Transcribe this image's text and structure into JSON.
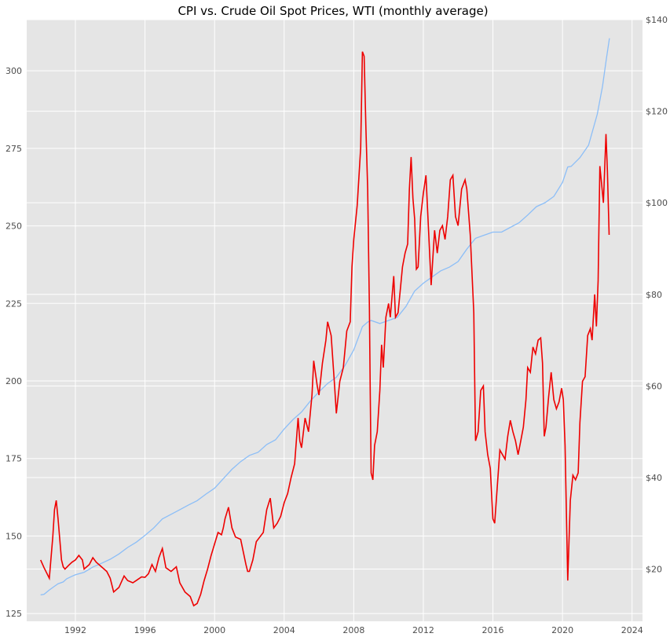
{
  "chart_data": {
    "type": "line",
    "title": "CPI vs. Crude Oil Spot Prices, WTI (monthly average)",
    "xlabel": "",
    "ylabel_left": "",
    "ylabel_right": "",
    "grid": true,
    "legend": "none",
    "colors": {
      "background": "#e5e5e5",
      "grid": "#ffffff",
      "cpi": "#8cbef7",
      "oil": "#ee0000"
    },
    "x_ticks": [
      "1992",
      "1996",
      "2000",
      "2004",
      "2008",
      "2012",
      "2016",
      "2020",
      "2024"
    ],
    "xlim": [
      1989.2,
      2024.6
    ],
    "y_left": {
      "ticks": [
        "125",
        "150",
        "175",
        "200",
        "225",
        "250",
        "275",
        "300"
      ],
      "ylim": [
        122.5,
        316.5
      ]
    },
    "y_right": {
      "ticks": [
        "$20",
        "$40",
        "$60",
        "$80",
        "$100",
        "$120",
        "$140"
      ],
      "ylim": [
        8.6,
        140
      ]
    },
    "series": [
      {
        "axis": "left",
        "color": "#8cbef7",
        "points": [
          [
            1990.0,
            131
          ],
          [
            1990.2,
            131.2
          ],
          [
            1990.5,
            132.6
          ],
          [
            1990.8,
            133.8
          ],
          [
            1991.0,
            134.6
          ],
          [
            1991.3,
            135.2
          ],
          [
            1991.5,
            136.2
          ],
          [
            1991.8,
            137
          ],
          [
            1992.0,
            137.5
          ],
          [
            1992.5,
            138.3
          ],
          [
            1993.0,
            140
          ],
          [
            1993.5,
            141.2
          ],
          [
            1994.0,
            142.5
          ],
          [
            1994.5,
            144.2
          ],
          [
            1995.0,
            146.3
          ],
          [
            1995.5,
            148
          ],
          [
            1996.0,
            150.2
          ],
          [
            1996.5,
            152.6
          ],
          [
            1997.0,
            155.5
          ],
          [
            1997.5,
            157
          ],
          [
            1998.0,
            158.5
          ],
          [
            1998.5,
            160
          ],
          [
            1999.0,
            161.4
          ],
          [
            1999.5,
            163.5
          ],
          [
            2000.0,
            165.4
          ],
          [
            2000.5,
            168.5
          ],
          [
            2001.0,
            171.5
          ],
          [
            2001.5,
            174
          ],
          [
            2002.0,
            176
          ],
          [
            2002.5,
            177
          ],
          [
            2003.0,
            179.5
          ],
          [
            2003.5,
            181
          ],
          [
            2004.0,
            184.5
          ],
          [
            2004.5,
            187.5
          ],
          [
            2005.0,
            190
          ],
          [
            2005.5,
            193.5
          ],
          [
            2006.0,
            196.5
          ],
          [
            2006.5,
            199.2
          ],
          [
            2007.0,
            201.2
          ],
          [
            2007.5,
            205
          ],
          [
            2008.0,
            210
          ],
          [
            2008.5,
            217.5
          ],
          [
            2008.8,
            219
          ],
          [
            2009.0,
            219.5
          ],
          [
            2009.5,
            218.5
          ],
          [
            2010.0,
            219.5
          ],
          [
            2010.5,
            220.5
          ],
          [
            2011.0,
            224
          ],
          [
            2011.5,
            229
          ],
          [
            2012.0,
            231.5
          ],
          [
            2012.5,
            233.5
          ],
          [
            2013.0,
            235.5
          ],
          [
            2013.5,
            236.7
          ],
          [
            2014.0,
            238.5
          ],
          [
            2014.5,
            242.5
          ],
          [
            2015.0,
            246
          ],
          [
            2015.5,
            247
          ],
          [
            2016.0,
            248
          ],
          [
            2016.5,
            248
          ],
          [
            2017.0,
            249.5
          ],
          [
            2017.5,
            251
          ],
          [
            2018.0,
            253.5
          ],
          [
            2018.5,
            256.2
          ],
          [
            2019.0,
            257.5
          ],
          [
            2019.5,
            259.5
          ],
          [
            2020.0,
            264
          ],
          [
            2020.3,
            269
          ],
          [
            2020.5,
            269.2
          ],
          [
            2021.0,
            272
          ],
          [
            2021.5,
            276
          ],
          [
            2022.0,
            286
          ],
          [
            2022.3,
            295
          ],
          [
            2022.5,
            303
          ],
          [
            2022.7,
            310.5
          ]
        ]
      },
      {
        "axis": "right",
        "color": "#ee0000",
        "points": [
          [
            1990.0,
            22
          ],
          [
            1990.2,
            20.3
          ],
          [
            1990.5,
            18
          ],
          [
            1990.7,
            27
          ],
          [
            1990.8,
            33
          ],
          [
            1990.9,
            35
          ],
          [
            1991.0,
            31
          ],
          [
            1991.2,
            22
          ],
          [
            1991.3,
            20.5
          ],
          [
            1991.4,
            20
          ],
          [
            1991.6,
            20.8
          ],
          [
            1991.8,
            21.5
          ],
          [
            1992.0,
            22
          ],
          [
            1992.2,
            23
          ],
          [
            1992.4,
            22
          ],
          [
            1992.5,
            20
          ],
          [
            1992.8,
            21
          ],
          [
            1993.0,
            22.5
          ],
          [
            1993.2,
            21.5
          ],
          [
            1993.5,
            20.5
          ],
          [
            1993.8,
            19.5
          ],
          [
            1994.0,
            18
          ],
          [
            1994.2,
            15
          ],
          [
            1994.5,
            16
          ],
          [
            1994.8,
            18.5
          ],
          [
            1995.0,
            17.5
          ],
          [
            1995.3,
            17
          ],
          [
            1995.5,
            17.5
          ],
          [
            1995.8,
            18.3
          ],
          [
            1996.0,
            18.2
          ],
          [
            1996.2,
            19
          ],
          [
            1996.4,
            21
          ],
          [
            1996.6,
            19.5
          ],
          [
            1996.8,
            22.5
          ],
          [
            1997.0,
            24.5
          ],
          [
            1997.2,
            20.3
          ],
          [
            1997.5,
            19.5
          ],
          [
            1997.8,
            20.5
          ],
          [
            1998.0,
            17
          ],
          [
            1998.3,
            15
          ],
          [
            1998.6,
            14
          ],
          [
            1998.8,
            12
          ],
          [
            1999.0,
            12.5
          ],
          [
            1999.2,
            14.5
          ],
          [
            1999.4,
            17.5
          ],
          [
            1999.6,
            20
          ],
          [
            1999.8,
            23
          ],
          [
            2000.0,
            25.5
          ],
          [
            2000.2,
            28
          ],
          [
            2000.4,
            27.5
          ],
          [
            2000.5,
            29
          ],
          [
            2000.6,
            31
          ],
          [
            2000.8,
            33.5
          ],
          [
            2001.0,
            29
          ],
          [
            2001.2,
            27
          ],
          [
            2001.5,
            26.5
          ],
          [
            2001.8,
            21
          ],
          [
            2001.9,
            19.5
          ],
          [
            2002.0,
            19.5
          ],
          [
            2002.2,
            22
          ],
          [
            2002.4,
            26
          ],
          [
            2002.6,
            27
          ],
          [
            2002.8,
            28
          ],
          [
            2003.0,
            33
          ],
          [
            2003.2,
            35.5
          ],
          [
            2003.4,
            29
          ],
          [
            2003.6,
            30
          ],
          [
            2003.8,
            31.5
          ],
          [
            2004.0,
            34.5
          ],
          [
            2004.2,
            36.5
          ],
          [
            2004.4,
            40
          ],
          [
            2004.6,
            43
          ],
          [
            2004.8,
            53
          ],
          [
            2004.9,
            48
          ],
          [
            2005.0,
            46.5
          ],
          [
            2005.2,
            53
          ],
          [
            2005.4,
            50
          ],
          [
            2005.6,
            58
          ],
          [
            2005.7,
            65.5
          ],
          [
            2005.9,
            60
          ],
          [
            2006.0,
            58
          ],
          [
            2006.2,
            65
          ],
          [
            2006.4,
            70
          ],
          [
            2006.5,
            74
          ],
          [
            2006.7,
            71
          ],
          [
            2006.9,
            60
          ],
          [
            2007.0,
            54
          ],
          [
            2007.2,
            61
          ],
          [
            2007.4,
            64
          ],
          [
            2007.6,
            72
          ],
          [
            2007.8,
            74
          ],
          [
            2007.9,
            86
          ],
          [
            2008.0,
            92
          ],
          [
            2008.2,
            99.5
          ],
          [
            2008.4,
            112
          ],
          [
            2008.5,
            133
          ],
          [
            2008.6,
            132
          ],
          [
            2008.7,
            116
          ],
          [
            2008.8,
            103
          ],
          [
            2008.9,
            77
          ],
          [
            2008.95,
            58
          ],
          [
            2009.0,
            41
          ],
          [
            2009.1,
            39.5
          ],
          [
            2009.2,
            47
          ],
          [
            2009.35,
            50
          ],
          [
            2009.5,
            59
          ],
          [
            2009.6,
            69
          ],
          [
            2009.7,
            64
          ],
          [
            2009.85,
            75
          ],
          [
            2010.0,
            78
          ],
          [
            2010.1,
            75
          ],
          [
            2010.3,
            84
          ],
          [
            2010.4,
            75
          ],
          [
            2010.55,
            76
          ],
          [
            2010.7,
            82
          ],
          [
            2010.8,
            86
          ],
          [
            2010.95,
            89
          ],
          [
            2011.1,
            91
          ],
          [
            2011.2,
            103
          ],
          [
            2011.3,
            110
          ],
          [
            2011.4,
            101
          ],
          [
            2011.5,
            96.5
          ],
          [
            2011.6,
            85.5
          ],
          [
            2011.7,
            86
          ],
          [
            2011.85,
            97
          ],
          [
            2012.0,
            102
          ],
          [
            2012.15,
            106
          ],
          [
            2012.3,
            94
          ],
          [
            2012.45,
            82
          ],
          [
            2012.55,
            88
          ],
          [
            2012.65,
            94
          ],
          [
            2012.8,
            89
          ],
          [
            2012.95,
            94
          ],
          [
            2013.1,
            95
          ],
          [
            2013.25,
            92
          ],
          [
            2013.4,
            97
          ],
          [
            2013.55,
            105
          ],
          [
            2013.7,
            106
          ],
          [
            2013.85,
            97
          ],
          [
            2014.0,
            95
          ],
          [
            2014.2,
            103
          ],
          [
            2014.4,
            105
          ],
          [
            2014.5,
            103
          ],
          [
            2014.7,
            93
          ],
          [
            2014.9,
            76
          ],
          [
            2015.0,
            48
          ],
          [
            2015.15,
            50
          ],
          [
            2015.3,
            59
          ],
          [
            2015.45,
            60
          ],
          [
            2015.55,
            50
          ],
          [
            2015.7,
            45
          ],
          [
            2015.85,
            42
          ],
          [
            2016.0,
            31
          ],
          [
            2016.1,
            30
          ],
          [
            2016.25,
            38
          ],
          [
            2016.4,
            46
          ],
          [
            2016.55,
            45
          ],
          [
            2016.7,
            44
          ],
          [
            2016.85,
            49
          ],
          [
            2017.0,
            52.5
          ],
          [
            2017.15,
            50
          ],
          [
            2017.3,
            48
          ],
          [
            2017.45,
            45
          ],
          [
            2017.6,
            48
          ],
          [
            2017.75,
            51
          ],
          [
            2017.9,
            57
          ],
          [
            2018.0,
            64
          ],
          [
            2018.15,
            63
          ],
          [
            2018.3,
            68.5
          ],
          [
            2018.45,
            67
          ],
          [
            2018.6,
            70
          ],
          [
            2018.75,
            70.5
          ],
          [
            2018.85,
            65
          ],
          [
            2018.95,
            49
          ],
          [
            2019.05,
            51
          ],
          [
            2019.2,
            57.5
          ],
          [
            2019.35,
            63
          ],
          [
            2019.5,
            57
          ],
          [
            2019.65,
            55
          ],
          [
            2019.8,
            56.5
          ],
          [
            2019.95,
            59.5
          ],
          [
            2020.05,
            57
          ],
          [
            2020.15,
            47
          ],
          [
            2020.3,
            17.5
          ],
          [
            2020.45,
            35
          ],
          [
            2020.6,
            40.5
          ],
          [
            2020.75,
            39.5
          ],
          [
            2020.9,
            41
          ],
          [
            2021.0,
            52
          ],
          [
            2021.15,
            61
          ],
          [
            2021.3,
            62
          ],
          [
            2021.45,
            71
          ],
          [
            2021.6,
            72.5
          ],
          [
            2021.7,
            70
          ],
          [
            2021.85,
            80
          ],
          [
            2021.95,
            73
          ],
          [
            2022.05,
            83
          ],
          [
            2022.15,
            108
          ],
          [
            2022.25,
            104
          ],
          [
            2022.35,
            100
          ],
          [
            2022.5,
            115
          ],
          [
            2022.58,
            107
          ],
          [
            2022.68,
            93
          ]
        ]
      }
    ]
  }
}
